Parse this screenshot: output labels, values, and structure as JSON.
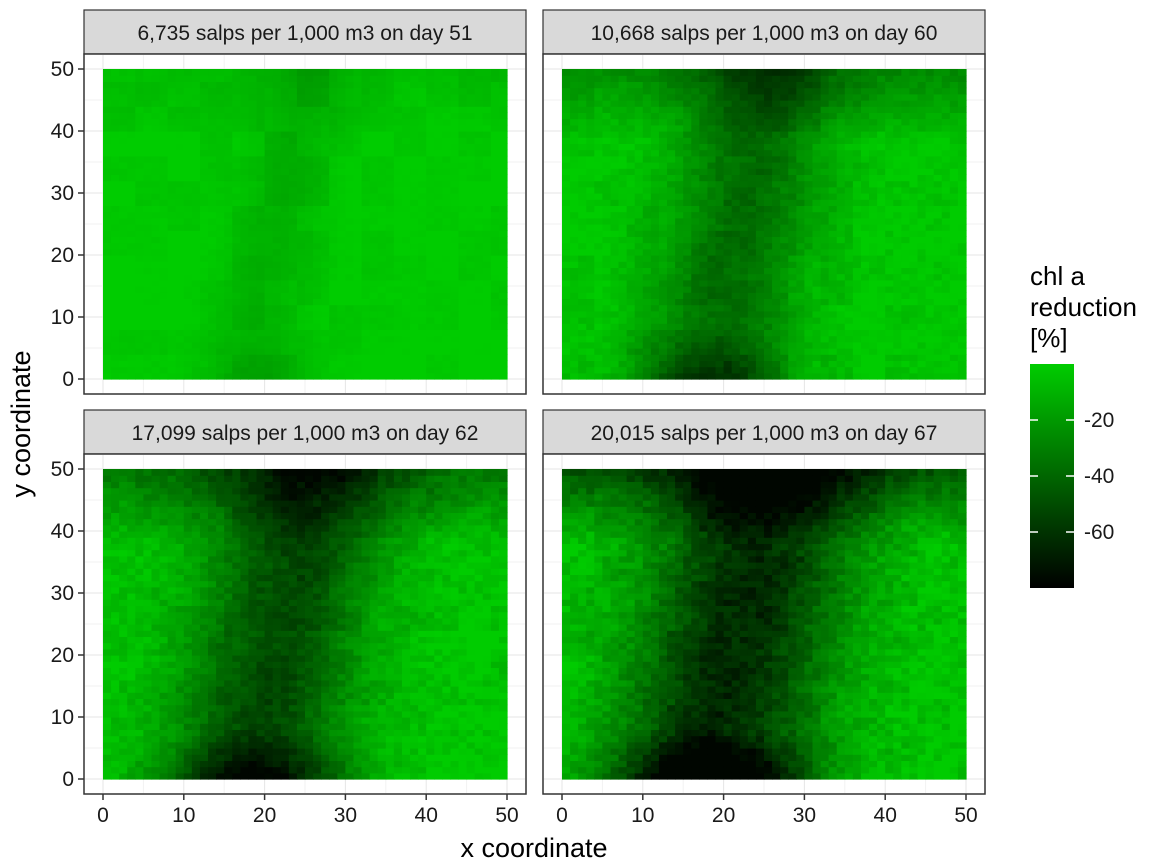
{
  "chart_data": {
    "type": "heatmap",
    "xlabel": "x coordinate",
    "ylabel": "y coordinate",
    "x_range": [
      0,
      50
    ],
    "y_range": [
      0,
      50
    ],
    "x_ticks": [
      0,
      10,
      20,
      30,
      40,
      50
    ],
    "y_ticks": [
      0,
      10,
      20,
      30,
      40,
      50
    ],
    "grid": true,
    "legend": {
      "title_lines": [
        "chl a",
        "reduction",
        "[%]"
      ],
      "ticks": [
        -20,
        -40,
        -60
      ],
      "value_range": [
        -80,
        0
      ],
      "color_low": "#000000",
      "color_high": "#00cc00",
      "placement": "right"
    },
    "panels": [
      {
        "title": "6,735 salps per 1,000 m3 on day 51",
        "intensity": 0.15
      },
      {
        "title": "10,668 salps per 1,000 m3 on day 60",
        "intensity": 0.55
      },
      {
        "title": "17,099 salps per 1,000 m3 on day 62",
        "intensity": 0.75
      },
      {
        "title": "20,015 salps per 1,000 m3 on day 67",
        "intensity": 0.95
      }
    ]
  }
}
